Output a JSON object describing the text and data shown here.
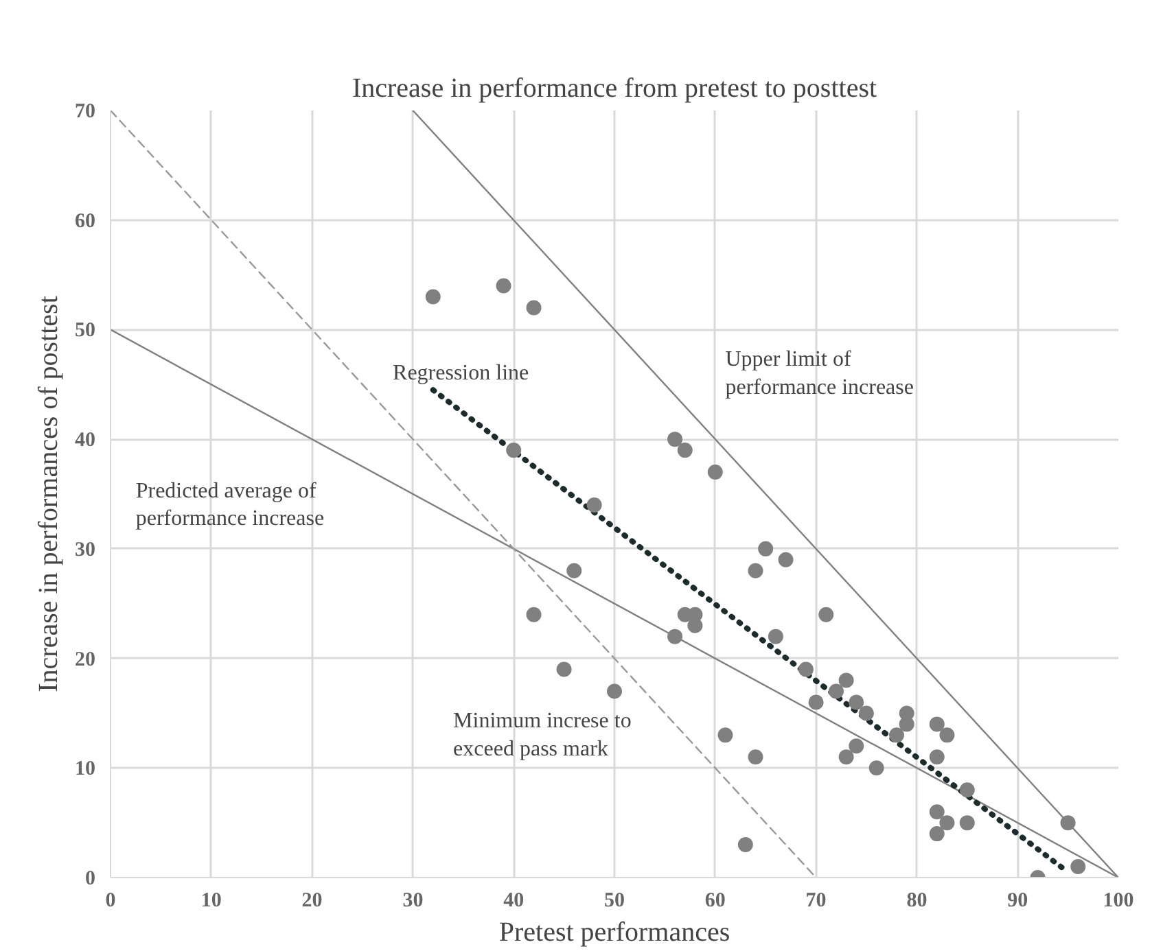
{
  "chart_data": {
    "type": "scatter",
    "title": "Increase in performance from pretest to posttest",
    "xlabel": "Pretest performances",
    "ylabel": "Increase in performances of posttest",
    "xlim": [
      0,
      100
    ],
    "ylim": [
      0,
      70
    ],
    "xticks": [
      0,
      10,
      20,
      30,
      40,
      50,
      60,
      70,
      80,
      90,
      100
    ],
    "yticks": [
      0,
      10,
      20,
      30,
      40,
      50,
      60,
      70
    ],
    "grid": true,
    "series": [
      {
        "marker": "circle",
        "color": "#808080",
        "x": [
          32,
          39,
          42,
          40,
          48,
          46,
          42,
          45,
          50,
          56,
          57,
          60,
          56,
          57,
          58,
          58,
          61,
          64,
          63,
          64,
          65,
          67,
          66,
          71,
          69,
          70,
          72,
          73,
          73,
          74,
          74,
          75,
          76,
          78,
          79,
          79,
          82,
          83,
          82,
          82,
          82,
          83,
          85,
          85,
          92,
          95,
          96
        ],
        "values": [
          53,
          54,
          52,
          39,
          34,
          28,
          24,
          19,
          17,
          40,
          39,
          37,
          22,
          24,
          24,
          23,
          13,
          11,
          3,
          28,
          30,
          29,
          22,
          24,
          19,
          16,
          17,
          18,
          11,
          16,
          12,
          15,
          10,
          13,
          15,
          14,
          14,
          13,
          11,
          6,
          4,
          5,
          8,
          5,
          0,
          5,
          1
        ]
      },
      {
        "type": "line",
        "marker": "none",
        "line_style": "solid",
        "color": "#808080",
        "x": [
          30,
          100
        ],
        "values": [
          70,
          0
        ]
      },
      {
        "type": "line",
        "marker": "none",
        "line_style": "solid",
        "color": "#808080",
        "x": [
          0,
          100
        ],
        "values": [
          50,
          0
        ]
      },
      {
        "type": "line",
        "marker": "none",
        "line_style": "dashed",
        "color": "#999999",
        "x": [
          0,
          70
        ],
        "values": [
          70,
          0
        ]
      },
      {
        "type": "line",
        "marker": "none",
        "line_style": "dotted",
        "color": "#1c2b2b",
        "x": [
          32,
          95
        ],
        "values": [
          44.5,
          0.5
        ]
      }
    ],
    "annotations": [
      "Regression line",
      "Upper limit of\nperformance increase",
      "Predicted average of\nperformance increase",
      "Minimum increse to\nexceed pass mark"
    ]
  }
}
